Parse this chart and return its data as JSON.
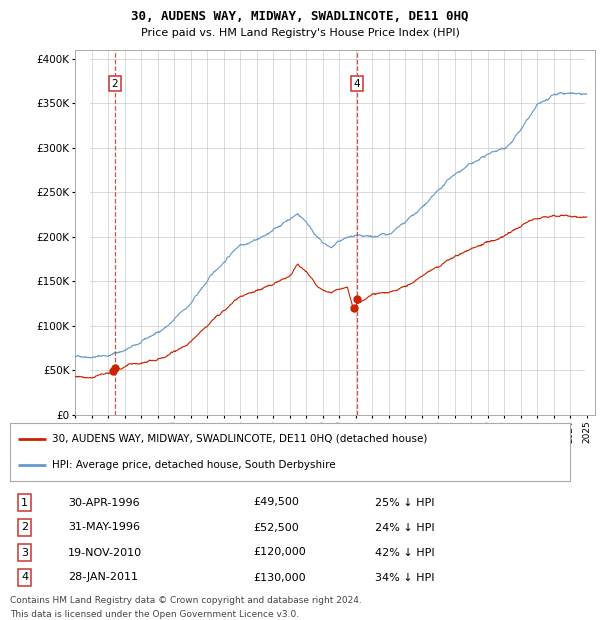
{
  "title1": "30, AUDENS WAY, MIDWAY, SWADLINCOTE, DE11 0HQ",
  "title2": "Price paid vs. HM Land Registry's House Price Index (HPI)",
  "legend1": "30, AUDENS WAY, MIDWAY, SWADLINCOTE, DE11 0HQ (detached house)",
  "legend2": "HPI: Average price, detached house, South Derbyshire",
  "footer1": "Contains HM Land Registry data © Crown copyright and database right 2024.",
  "footer2": "This data is licensed under the Open Government Licence v3.0.",
  "xlim_start": 1994.0,
  "xlim_end": 2025.5,
  "ylim_min": 0,
  "ylim_max": 410000,
  "yticks": [
    0,
    50000,
    100000,
    150000,
    200000,
    250000,
    300000,
    350000,
    400000
  ],
  "ytick_labels": [
    "£0",
    "£50K",
    "£100K",
    "£150K",
    "£200K",
    "£250K",
    "£300K",
    "£350K",
    "£400K"
  ],
  "sales": [
    {
      "num": 1,
      "date_num": 1996.33,
      "price": 49500,
      "label": "1",
      "x_dashed": false
    },
    {
      "num": 2,
      "date_num": 1996.42,
      "price": 52500,
      "label": "2",
      "x_dashed": true
    },
    {
      "num": 3,
      "date_num": 2010.89,
      "price": 120000,
      "label": "3",
      "x_dashed": false
    },
    {
      "num": 4,
      "date_num": 2011.08,
      "price": 130000,
      "label": "4",
      "x_dashed": true
    }
  ],
  "table_rows": [
    {
      "num": "1",
      "date": "30-APR-1996",
      "price": "£49,500",
      "pct": "25% ↓ HPI"
    },
    {
      "num": "2",
      "date": "31-MAY-1996",
      "price": "£52,500",
      "pct": "24% ↓ HPI"
    },
    {
      "num": "3",
      "date": "19-NOV-2010",
      "price": "£120,000",
      "pct": "42% ↓ HPI"
    },
    {
      "num": "4",
      "date": "28-JAN-2011",
      "price": "£130,000",
      "pct": "34% ↓ HPI"
    }
  ],
  "hpi_color": "#6699cc",
  "price_color": "#cc2200",
  "dashed_color": "#cc3333",
  "background_color": "#ffffff",
  "grid_color": "#cccccc",
  "hatch_color": "#cccccc",
  "hpi_anchors": [
    [
      1994.0,
      65000
    ],
    [
      1995.0,
      68000
    ],
    [
      1996.0,
      70000
    ],
    [
      1997.0,
      76000
    ],
    [
      1998.0,
      83000
    ],
    [
      1999.0,
      93000
    ],
    [
      2000.0,
      107000
    ],
    [
      2001.0,
      124000
    ],
    [
      2002.0,
      148000
    ],
    [
      2003.0,
      170000
    ],
    [
      2004.0,
      191000
    ],
    [
      2005.0,
      200000
    ],
    [
      2006.0,
      208000
    ],
    [
      2007.0,
      222000
    ],
    [
      2007.5,
      228000
    ],
    [
      2008.0,
      220000
    ],
    [
      2009.0,
      196000
    ],
    [
      2009.5,
      190000
    ],
    [
      2010.0,
      196000
    ],
    [
      2010.5,
      200000
    ],
    [
      2011.0,
      200000
    ],
    [
      2011.5,
      195000
    ],
    [
      2012.0,
      194000
    ],
    [
      2013.0,
      197000
    ],
    [
      2014.0,
      207000
    ],
    [
      2015.0,
      223000
    ],
    [
      2016.0,
      238000
    ],
    [
      2017.0,
      257000
    ],
    [
      2018.0,
      268000
    ],
    [
      2019.0,
      278000
    ],
    [
      2020.0,
      285000
    ],
    [
      2021.0,
      306000
    ],
    [
      2022.0,
      330000
    ],
    [
      2023.0,
      338000
    ],
    [
      2024.0,
      340000
    ],
    [
      2025.0,
      342000
    ]
  ],
  "price_anchors": [
    [
      1994.0,
      43000
    ],
    [
      1995.0,
      45000
    ],
    [
      1996.0,
      48000
    ],
    [
      1996.33,
      49500
    ],
    [
      1996.42,
      52500
    ],
    [
      1997.0,
      55000
    ],
    [
      1998.0,
      59000
    ],
    [
      1999.0,
      66000
    ],
    [
      2000.0,
      76000
    ],
    [
      2001.0,
      88000
    ],
    [
      2002.0,
      105000
    ],
    [
      2003.0,
      122000
    ],
    [
      2004.0,
      137000
    ],
    [
      2005.0,
      145000
    ],
    [
      2006.0,
      150000
    ],
    [
      2007.0,
      160000
    ],
    [
      2007.5,
      173000
    ],
    [
      2008.0,
      165000
    ],
    [
      2009.0,
      142000
    ],
    [
      2009.5,
      138000
    ],
    [
      2010.0,
      141000
    ],
    [
      2010.5,
      145000
    ],
    [
      2010.89,
      120000
    ],
    [
      2011.08,
      130000
    ],
    [
      2011.5,
      133000
    ],
    [
      2012.0,
      138000
    ],
    [
      2013.0,
      140000
    ],
    [
      2014.0,
      147000
    ],
    [
      2015.0,
      156000
    ],
    [
      2016.0,
      164000
    ],
    [
      2017.0,
      174000
    ],
    [
      2018.0,
      182000
    ],
    [
      2019.0,
      193000
    ],
    [
      2020.0,
      198000
    ],
    [
      2021.0,
      207000
    ],
    [
      2022.0,
      218000
    ],
    [
      2023.0,
      222000
    ],
    [
      2024.0,
      224000
    ],
    [
      2025.0,
      226000
    ]
  ]
}
